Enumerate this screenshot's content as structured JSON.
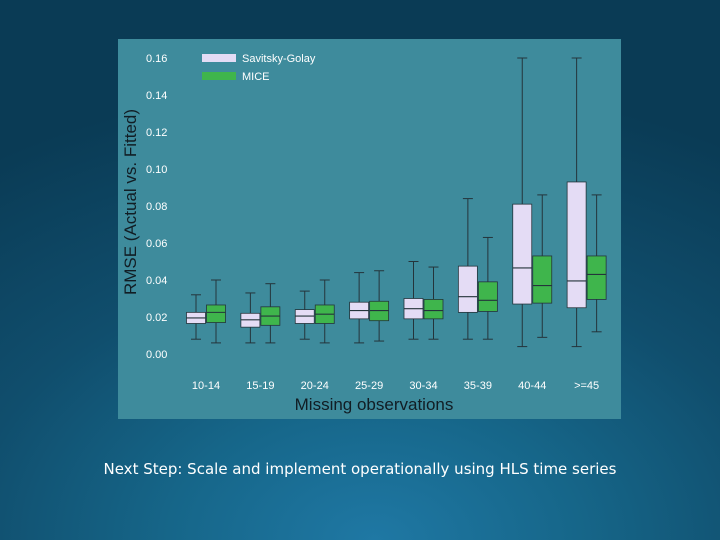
{
  "caption": "Next Step: Scale and implement operationally using HLS time series",
  "colors": {
    "panel": "#3e8b9c",
    "savitsky": "#e4dcf5",
    "mice": "#3fb54c",
    "whisker": "#24343b",
    "tick": "#ffffff",
    "title": "#111d24"
  },
  "chart_data": {
    "type": "box",
    "xlabel": "Missing observations",
    "ylabel": "RMSE (Actual vs. Fitted)",
    "ylim": [
      0,
      0.16
    ],
    "y_ticks": [
      "0.00",
      "0.02",
      "0.04",
      "0.06",
      "0.08",
      "0.10",
      "0.12",
      "0.14",
      "0.16"
    ],
    "categories": [
      "10-14",
      "15-19",
      "20-24",
      "25-29",
      "30-34",
      "35-39",
      "40-44",
      ">=45"
    ],
    "legend": [
      {
        "name": "Savitsky-Golay",
        "color": "#e4dcf5"
      },
      {
        "name": "MICE",
        "color": "#3fb54c"
      }
    ],
    "series": [
      {
        "name": "Savitsky-Golay",
        "boxes": [
          {
            "min": 0.008,
            "q1": 0.0165,
            "median": 0.0195,
            "q3": 0.0225,
            "max": 0.032
          },
          {
            "min": 0.006,
            "q1": 0.0145,
            "median": 0.0185,
            "q3": 0.022,
            "max": 0.033
          },
          {
            "min": 0.008,
            "q1": 0.0165,
            "median": 0.0205,
            "q3": 0.024,
            "max": 0.034
          },
          {
            "min": 0.006,
            "q1": 0.019,
            "median": 0.0235,
            "q3": 0.028,
            "max": 0.044
          },
          {
            "min": 0.008,
            "q1": 0.019,
            "median": 0.0245,
            "q3": 0.03,
            "max": 0.05
          },
          {
            "min": 0.008,
            "q1": 0.0225,
            "median": 0.031,
            "q3": 0.0475,
            "max": 0.084
          },
          {
            "min": 0.004,
            "q1": 0.027,
            "median": 0.0465,
            "q3": 0.081,
            "max": 0.16
          },
          {
            "min": 0.004,
            "q1": 0.025,
            "median": 0.0395,
            "q3": 0.093,
            "max": 0.16
          }
        ]
      },
      {
        "name": "MICE",
        "boxes": [
          {
            "min": 0.006,
            "q1": 0.017,
            "median": 0.0225,
            "q3": 0.0265,
            "max": 0.04
          },
          {
            "min": 0.006,
            "q1": 0.0155,
            "median": 0.0205,
            "q3": 0.0255,
            "max": 0.038
          },
          {
            "min": 0.006,
            "q1": 0.0165,
            "median": 0.0215,
            "q3": 0.0265,
            "max": 0.04
          },
          {
            "min": 0.007,
            "q1": 0.018,
            "median": 0.0235,
            "q3": 0.0285,
            "max": 0.045
          },
          {
            "min": 0.008,
            "q1": 0.019,
            "median": 0.0235,
            "q3": 0.0295,
            "max": 0.047
          },
          {
            "min": 0.008,
            "q1": 0.023,
            "median": 0.029,
            "q3": 0.039,
            "max": 0.063
          },
          {
            "min": 0.009,
            "q1": 0.0275,
            "median": 0.037,
            "q3": 0.053,
            "max": 0.086
          },
          {
            "min": 0.012,
            "q1": 0.0295,
            "median": 0.043,
            "q3": 0.053,
            "max": 0.086
          }
        ]
      }
    ]
  }
}
